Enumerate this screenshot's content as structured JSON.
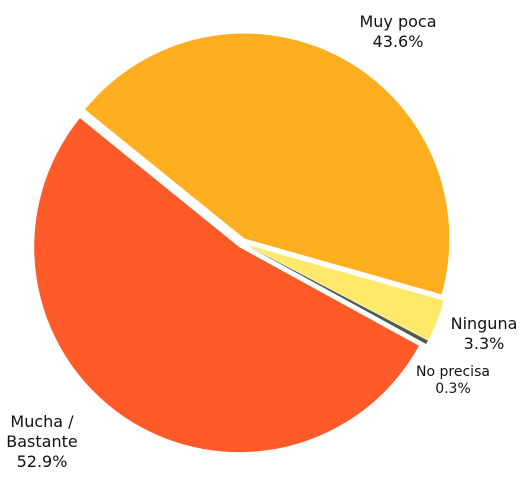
{
  "chart_data": {
    "type": "pie",
    "categories": [
      "Muy poca",
      "Ninguna",
      "No precisa",
      "Mucha / Bastante"
    ],
    "values": [
      43.6,
      3.3,
      0.3,
      52.9
    ],
    "value_labels": [
      "43.6%",
      "3.3%",
      "0.3%",
      "52.9%"
    ],
    "colors": [
      "#FFAE1F",
      "#FFE96A",
      "#4F5A4F",
      "#FF5A28"
    ]
  }
}
